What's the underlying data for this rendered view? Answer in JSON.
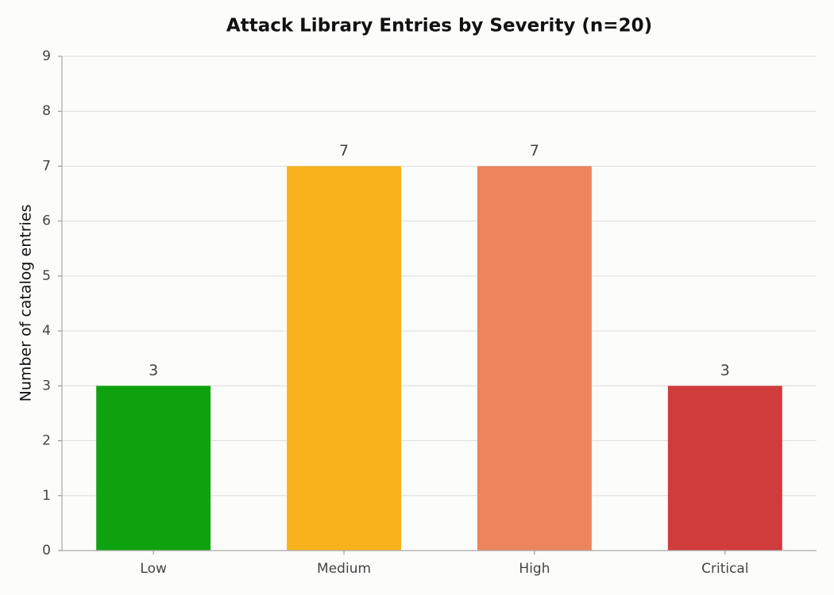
{
  "chart_data": {
    "type": "bar",
    "title": "Attack Library Entries by Severity (n=20)",
    "y_label": "Number of catalog entries",
    "categories": [
      "Low",
      "Medium",
      "High",
      "Critical"
    ],
    "values": [
      3,
      7,
      7,
      3
    ],
    "colors": [
      "#0ea30e",
      "#f9b21b",
      "#ec845d",
      "#d03c3c"
    ],
    "ylim": [
      0,
      9
    ],
    "yticks": [
      0,
      1,
      2,
      3,
      4,
      5,
      6,
      7,
      8,
      9
    ],
    "grid": true,
    "data_labels": true
  }
}
